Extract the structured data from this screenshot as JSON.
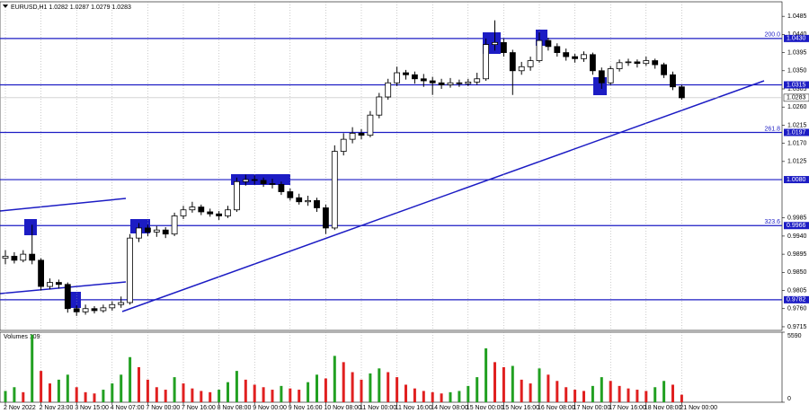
{
  "chart_data": {
    "type": "candlestick",
    "title": "EURUSD,H1  1.0282 1.0287 1.0279 1.0283",
    "categories": [
      "2 Nov 2022",
      null,
      null,
      null,
      "2 Nov 23:00",
      null,
      null,
      null,
      "3 Nov 15:00",
      null,
      null,
      null,
      "4 Nov 07:00",
      null,
      null,
      null,
      "7 Nov 00:00",
      null,
      null,
      null,
      "7 Nov 16:00",
      null,
      null,
      null,
      "8 Nov 08:00",
      null,
      null,
      null,
      "9 Nov 00:00",
      null,
      null,
      null,
      "9 Nov 16:00",
      null,
      null,
      null,
      "10 Nov 08:00",
      null,
      null,
      null,
      "11 Nov 00:00",
      null,
      null,
      null,
      "11 Nov 16:00",
      null,
      null,
      null,
      "14 Nov 08:00",
      null,
      null,
      null,
      "15 Nov 00:00",
      null,
      null,
      null,
      "15 Nov 16:00",
      null,
      null,
      null,
      "16 Nov 08:00",
      null,
      null,
      null,
      "17 Nov 00:00",
      null,
      null,
      null,
      "17 Nov 16:00",
      null,
      null,
      null,
      "18 Nov 08:00",
      null,
      null,
      null,
      "21 Nov 00:00"
    ],
    "open": [
      0.9885,
      0.989,
      0.988,
      0.9895,
      0.988,
      0.9815,
      0.9825,
      0.982,
      0.976,
      0.9752,
      0.976,
      0.9755,
      0.9762,
      0.977,
      0.9775,
      0.9935,
      0.996,
      0.995,
      0.9955,
      0.9945,
      0.999,
      1.0005,
      1.0012,
      1.0,
      0.9995,
      0.999,
      1.0005,
      1.0075,
      1.008,
      1.0078,
      1.007,
      1.0068,
      1.005,
      1.0035,
      1.0025,
      1.0028,
      1.001,
      0.996,
      1.015,
      1.018,
      1.0195,
      1.019,
      1.024,
      1.0285,
      1.032,
      1.0345,
      1.034,
      1.033,
      1.0325,
      1.032,
      1.0315,
      1.032,
      1.0318,
      1.0322,
      1.033,
      1.0415,
      1.042,
      1.0395,
      1.035,
      1.036,
      1.0375,
      1.0425,
      1.041,
      1.0395,
      1.0385,
      1.038,
      1.039,
      1.035,
      1.032,
      1.0355,
      1.037,
      1.0372,
      1.0368,
      1.0375,
      1.0365,
      1.034,
      1.031
    ],
    "high": [
      0.9905,
      0.99,
      0.9905,
      0.9968,
      0.9885,
      0.9835,
      0.9832,
      0.9825,
      0.9768,
      0.977,
      0.9766,
      0.977,
      0.9778,
      0.979,
      0.9945,
      0.9972,
      0.9968,
      0.9965,
      0.9962,
      0.9998,
      1.0015,
      1.0025,
      1.0018,
      1.0008,
      1.0002,
      1.0015,
      1.0085,
      1.0092,
      1.009,
      1.0085,
      1.0082,
      1.0075,
      1.0058,
      1.0045,
      1.004,
      1.0035,
      1.0018,
      1.0165,
      1.0195,
      1.021,
      1.0205,
      1.025,
      1.0295,
      1.033,
      1.036,
      1.0352,
      1.0348,
      1.0342,
      1.0335,
      1.033,
      1.0332,
      1.0328,
      1.033,
      1.0345,
      1.043,
      1.0475,
      1.043,
      1.0402,
      1.0372,
      1.0385,
      1.0445,
      1.0432,
      1.0418,
      1.0405,
      1.0392,
      1.0398,
      1.0395,
      1.0358,
      1.0362,
      1.0378,
      1.038,
      1.0378,
      1.0385,
      1.038,
      1.037,
      1.0348,
      1.0315
    ],
    "low": [
      0.987,
      0.9872,
      0.9875,
      0.987,
      0.9805,
      0.9808,
      0.981,
      0.975,
      0.9742,
      0.9745,
      0.9748,
      0.975,
      0.9755,
      0.9762,
      0.977,
      0.9925,
      0.994,
      0.9938,
      0.9935,
      0.994,
      0.9982,
      0.9998,
      0.9992,
      0.9988,
      0.998,
      0.9985,
      1.0,
      1.0065,
      1.0068,
      1.0062,
      1.0058,
      1.0042,
      1.0028,
      1.0018,
      1.0015,
      1.0,
      0.9945,
      0.9955,
      1.014,
      1.017,
      1.018,
      1.0185,
      1.0232,
      1.0278,
      1.0312,
      1.0328,
      1.0318,
      1.031,
      1.029,
      1.0305,
      1.0308,
      1.031,
      1.0312,
      1.0315,
      1.0325,
      1.04,
      1.0385,
      1.029,
      1.034,
      1.035,
      1.037,
      1.04,
      1.0385,
      1.0375,
      1.037,
      1.0372,
      1.034,
      1.0305,
      1.0315,
      1.0348,
      1.0362,
      1.0358,
      1.0362,
      1.0355,
      1.0332,
      1.0302,
      1.0278
    ],
    "close": [
      0.989,
      0.988,
      0.9895,
      0.988,
      0.9815,
      0.9825,
      0.982,
      0.976,
      0.9752,
      0.976,
      0.9755,
      0.9762,
      0.977,
      0.9775,
      0.9935,
      0.996,
      0.995,
      0.9955,
      0.9945,
      0.999,
      1.0005,
      1.0012,
      1.0,
      0.9995,
      0.999,
      1.0005,
      1.0075,
      1.008,
      1.0078,
      1.007,
      1.0068,
      1.005,
      1.0035,
      1.0025,
      1.0028,
      1.001,
      0.996,
      1.015,
      1.018,
      1.0195,
      1.019,
      1.024,
      1.0285,
      1.032,
      1.0345,
      1.034,
      1.033,
      1.0325,
      1.032,
      1.0315,
      1.032,
      1.0318,
      1.0322,
      1.033,
      1.0415,
      1.042,
      1.0395,
      1.035,
      1.036,
      1.0375,
      1.0425,
      1.041,
      1.0395,
      1.0385,
      1.038,
      1.039,
      1.035,
      1.032,
      1.0355,
      1.037,
      1.0372,
      1.0368,
      1.0375,
      1.0365,
      1.034,
      1.031,
      1.0283
    ],
    "ylim": [
      0.9706,
      1.0521
    ],
    "yticks": [
      1.0485,
      {
        "value": 1.044,
        "label": "1.0440"
      },
      1.0395,
      {
        "value": 1.035,
        "label": "1.0350"
      },
      1.0305,
      {
        "value": 1.026,
        "label": "1.0260"
      },
      1.0215,
      {
        "value": 1.017,
        "label": "1.0170"
      },
      1.0125,
      0.9985,
      {
        "value": 0.994,
        "label": "0.9940"
      },
      0.9895,
      {
        "value": 0.985,
        "label": "0.9850"
      },
      0.9805,
      {
        "value": 0.976,
        "label": "0.9760"
      },
      0.9715
    ],
    "levels": [
      {
        "value": 1.043,
        "label": "1.0430",
        "tag": "200.0"
      },
      {
        "value": 1.0315,
        "label": "1.0315"
      },
      {
        "value": 1.0197,
        "label": "1.0197",
        "tag": "261.8"
      },
      {
        "value": 1.008,
        "label": "1.0080"
      },
      {
        "value": 0.9966,
        "label": "0.9966",
        "tag": "323.6"
      },
      {
        "value": 0.9782,
        "label": "0.9782"
      }
    ],
    "level_color": "#1c1cc4",
    "current_price": 1.0283,
    "grid": true,
    "volume": {
      "label": "Volumes 109",
      "ylim": [
        0,
        5590
      ],
      "yticks": [
        0,
        5590
      ],
      "up_color": "#22a022",
      "down_color": "#e02020",
      "values": [
        900,
        1200,
        800,
        5400,
        2500,
        1500,
        1800,
        2200,
        1200,
        800,
        700,
        1000,
        1500,
        2200,
        3600,
        2800,
        1800,
        1200,
        1000,
        2000,
        1500,
        1100,
        900,
        800,
        1000,
        1600,
        2500,
        1800,
        1400,
        1200,
        1000,
        1300,
        1100,
        1000,
        1600,
        2200,
        1900,
        3700,
        3200,
        2400,
        1800,
        2300,
        2700,
        2400,
        2000,
        1400,
        1100,
        900,
        800,
        700,
        800,
        900,
        1300,
        2000,
        4300,
        3200,
        2800,
        2900,
        1800,
        1500,
        2700,
        2200,
        1700,
        1200,
        1000,
        900,
        1300,
        2000,
        1700,
        1300,
        1100,
        1000,
        900,
        1200,
        1700,
        1400,
        600
      ]
    }
  }
}
